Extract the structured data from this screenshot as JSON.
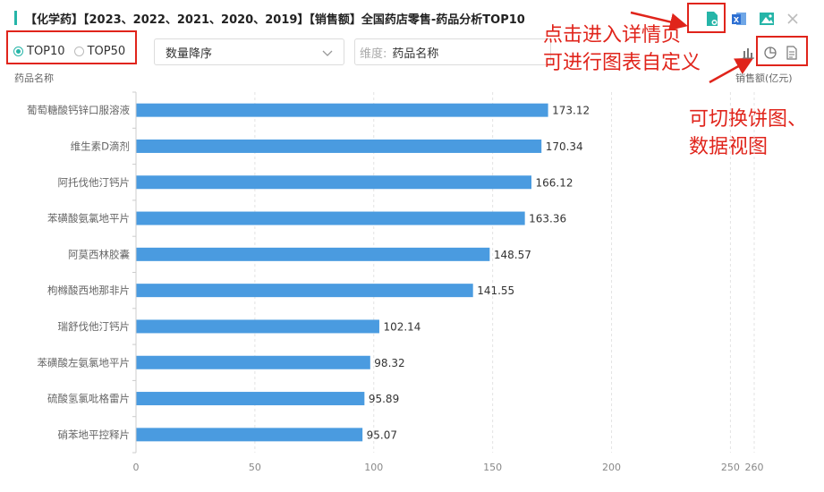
{
  "header": {
    "title": "【化学药】【2023、2022、2021、2020、2019】【销售额】全国药店零售-药品分析TOP10"
  },
  "toolbar": {
    "icons": [
      "doc-settings-icon",
      "excel-icon",
      "image-icon",
      "close-icon"
    ],
    "view_icons": [
      "bar-chart-icon",
      "pie-chart-icon",
      "data-view-icon"
    ]
  },
  "filters": {
    "top_options": [
      "TOP10",
      "TOP50"
    ],
    "top_selected": "TOP10",
    "sort_value": "数量降序",
    "dimension_label": "维度:",
    "dimension_value": "药品名称"
  },
  "annotations": {
    "detail_line1": "点击进入详情页",
    "detail_line2": "可进行图表自定义",
    "switch_line1": "可切换饼图、",
    "switch_line2": "数据视图"
  },
  "colors": {
    "accent": "#26b5a8",
    "bar": "#4a9be0",
    "annotation": "#e0241b"
  },
  "chart_data": {
    "type": "bar",
    "orientation": "horizontal",
    "ylabel": "药品名称",
    "xlabel": "销售额(亿元)",
    "categories": [
      "葡萄糖酸钙锌口服溶液",
      "维生素D滴剂",
      "阿托伐他汀钙片",
      "苯磺酸氨氯地平片",
      "阿莫西林胶囊",
      "枸橼酸西地那非片",
      "瑞舒伐他汀钙片",
      "苯磺酸左氨氯地平片",
      "硫酸氢氯吡格雷片",
      "硝苯地平控释片"
    ],
    "values": [
      173.12,
      170.34,
      166.12,
      163.36,
      148.57,
      141.55,
      102.14,
      98.32,
      95.89,
      95.07
    ],
    "value_labels": [
      "173.12",
      "170.34",
      "166.12",
      "163.36",
      "148.57",
      "141.55",
      "102.14",
      "98.32",
      "95.89",
      "95.07"
    ],
    "xticks": [
      0,
      50,
      100,
      150,
      200,
      250,
      260
    ],
    "xtick_labels": [
      "0",
      "50",
      "100",
      "150",
      "200",
      "250",
      "260"
    ],
    "xlim": [
      0,
      260
    ],
    "grid": true
  }
}
